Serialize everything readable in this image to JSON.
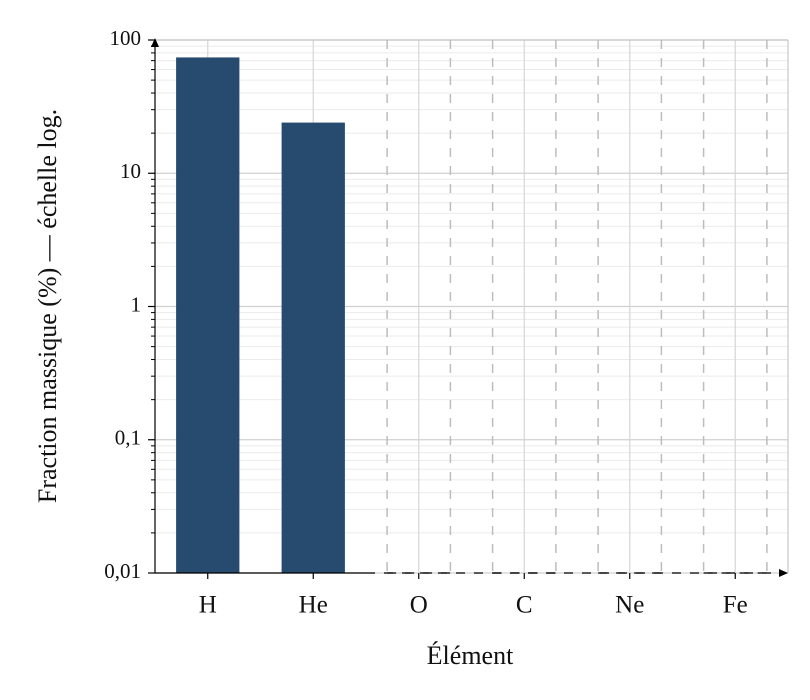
{
  "chart_data": {
    "type": "bar",
    "categories": [
      "H",
      "He",
      "O",
      "C",
      "Ne",
      "Fe"
    ],
    "values": [
      74,
      24,
      null,
      null,
      null,
      null
    ],
    "color": "#274b6e",
    "xlabel": "Élément",
    "ylabel": "Fraction massique (%) — échelle log.",
    "log_scale": true,
    "ylim": [
      0.01,
      100
    ],
    "yticks": [
      {
        "value": 0.01,
        "label": "0,01"
      },
      {
        "value": 0.1,
        "label": "0,1"
      },
      1,
      10,
      100
    ],
    "grid": true
  }
}
